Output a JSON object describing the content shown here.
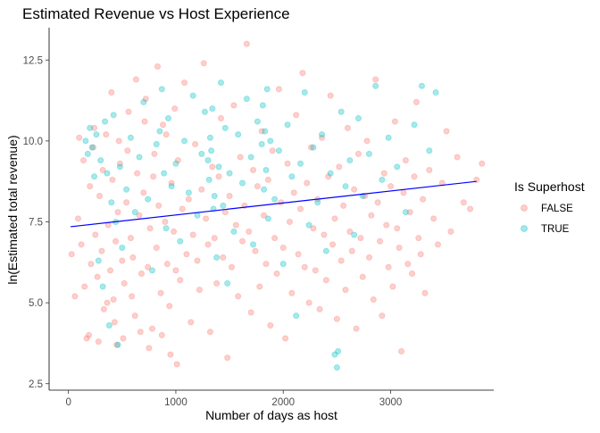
{
  "chart_data": {
    "type": "scatter",
    "title": "Estimated Revenue vs Host Experience",
    "xlabel": "Number of days as host",
    "ylabel": "ln(Estimated total revenue)",
    "xlim": [
      -180,
      3960
    ],
    "ylim": [
      2.3,
      13.5
    ],
    "x_ticks": [
      0,
      1000,
      2000,
      3000
    ],
    "x_tick_labels": [
      "0",
      "1000",
      "2000",
      "3000"
    ],
    "y_ticks": [
      2.5,
      5.0,
      7.5,
      10.0,
      12.5
    ],
    "y_tick_labels": [
      "2.5",
      "5.0",
      "7.5",
      "10.0",
      "12.5"
    ],
    "grid": false,
    "legend_position": "right",
    "legend": {
      "title": "Is Superhost",
      "entries": [
        {
          "label": "FALSE",
          "color": "#F8766D"
        },
        {
          "label": "TRUE",
          "color": "#00BFC4"
        }
      ]
    },
    "series": [
      {
        "name": "FALSE",
        "color": "#F8766D",
        "opacity": 0.35,
        "points": [
          [
            30,
            6.5
          ],
          [
            60,
            5.2
          ],
          [
            90,
            7.6
          ],
          [
            120,
            6.8
          ],
          [
            150,
            5.5
          ],
          [
            170,
            3.9
          ],
          [
            190,
            4.0
          ],
          [
            200,
            8.6
          ],
          [
            210,
            6.2
          ],
          [
            230,
            9.8
          ],
          [
            250,
            7.1
          ],
          [
            270,
            5.8
          ],
          [
            290,
            8.3
          ],
          [
            310,
            6.6
          ],
          [
            330,
            4.8
          ],
          [
            350,
            10.2
          ],
          [
            370,
            7.4
          ],
          [
            390,
            6.0
          ],
          [
            410,
            8.8
          ],
          [
            420,
            5.1
          ],
          [
            440,
            6.9
          ],
          [
            450,
            3.7
          ],
          [
            460,
            7.8
          ],
          [
            480,
            9.3
          ],
          [
            500,
            6.3
          ],
          [
            520,
            5.6
          ],
          [
            540,
            8.1
          ],
          [
            560,
            10.9
          ],
          [
            580,
            7.0
          ],
          [
            600,
            6.4
          ],
          [
            620,
            4.6
          ],
          [
            640,
            9.0
          ],
          [
            660,
            7.7
          ],
          [
            680,
            5.9
          ],
          [
            700,
            8.4
          ],
          [
            720,
            11.3
          ],
          [
            740,
            6.1
          ],
          [
            760,
            7.3
          ],
          [
            780,
            4.2
          ],
          [
            800,
            9.6
          ],
          [
            820,
            6.7
          ],
          [
            840,
            8.0
          ],
          [
            860,
            5.3
          ],
          [
            880,
            10.5
          ],
          [
            900,
            7.5
          ],
          [
            920,
            6.2
          ],
          [
            940,
            4.9
          ],
          [
            960,
            8.7
          ],
          [
            980,
            7.2
          ],
          [
            1000,
            6.0
          ],
          [
            1010,
            3.1
          ],
          [
            1020,
            9.4
          ],
          [
            1040,
            5.7
          ],
          [
            1060,
            7.9
          ],
          [
            1080,
            11.8
          ],
          [
            1100,
            6.5
          ],
          [
            1120,
            8.2
          ],
          [
            1140,
            4.4
          ],
          [
            1160,
            7.1
          ],
          [
            1180,
            9.9
          ],
          [
            1200,
            6.3
          ],
          [
            1220,
            5.4
          ],
          [
            1240,
            8.5
          ],
          [
            1260,
            12.4
          ],
          [
            1280,
            7.6
          ],
          [
            1300,
            6.8
          ],
          [
            1320,
            4.1
          ],
          [
            1340,
            9.2
          ],
          [
            1360,
            7.0
          ],
          [
            1380,
            5.6
          ],
          [
            1400,
            8.9
          ],
          [
            1420,
            10.7
          ],
          [
            1440,
            6.4
          ],
          [
            1460,
            7.8
          ],
          [
            1480,
            3.3
          ],
          [
            1500,
            8.3
          ],
          [
            1520,
            6.1
          ],
          [
            1540,
            11.1
          ],
          [
            1560,
            7.4
          ],
          [
            1580,
            5.2
          ],
          [
            1600,
            9.5
          ],
          [
            1620,
            6.9
          ],
          [
            1640,
            8.0
          ],
          [
            1660,
            13.0
          ],
          [
            1680,
            7.2
          ],
          [
            1700,
            4.7
          ],
          [
            1720,
            9.1
          ],
          [
            1740,
            6.6
          ],
          [
            1760,
            8.6
          ],
          [
            1780,
            5.5
          ],
          [
            1800,
            10.3
          ],
          [
            1820,
            7.7
          ],
          [
            1840,
            6.2
          ],
          [
            1860,
            8.8
          ],
          [
            1880,
            4.3
          ],
          [
            1900,
            9.7
          ],
          [
            1920,
            7.0
          ],
          [
            1940,
            5.9
          ],
          [
            1960,
            11.6
          ],
          [
            1980,
            8.1
          ],
          [
            2000,
            6.7
          ],
          [
            2020,
            3.9
          ],
          [
            2040,
            9.3
          ],
          [
            2060,
            7.5
          ],
          [
            2080,
            5.3
          ],
          [
            2100,
            8.4
          ],
          [
            2120,
            10.8
          ],
          [
            2140,
            6.5
          ],
          [
            2160,
            7.9
          ],
          [
            2180,
            12.1
          ],
          [
            2200,
            6.1
          ],
          [
            2220,
            8.7
          ],
          [
            2240,
            5.0
          ],
          [
            2260,
            9.8
          ],
          [
            2280,
            7.3
          ],
          [
            2300,
            6.0
          ],
          [
            2320,
            8.2
          ],
          [
            2340,
            4.8
          ],
          [
            2360,
            10.1
          ],
          [
            2380,
            7.1
          ],
          [
            2400,
            5.7
          ],
          [
            2420,
            8.9
          ],
          [
            2440,
            11.4
          ],
          [
            2460,
            6.8
          ],
          [
            2480,
            7.6
          ],
          [
            2500,
            4.5
          ],
          [
            2520,
            9.2
          ],
          [
            2540,
            6.3
          ],
          [
            2560,
            8.0
          ],
          [
            2580,
            5.4
          ],
          [
            2600,
            10.4
          ],
          [
            2620,
            7.2
          ],
          [
            2640,
            6.6
          ],
          [
            2660,
            8.5
          ],
          [
            2680,
            4.2
          ],
          [
            2700,
            9.6
          ],
          [
            2720,
            7.0
          ],
          [
            2740,
            5.8
          ],
          [
            2760,
            8.3
          ],
          [
            2780,
            10.0
          ],
          [
            2800,
            6.4
          ],
          [
            2820,
            7.7
          ],
          [
            2840,
            5.1
          ],
          [
            2860,
            11.9
          ],
          [
            2880,
            8.1
          ],
          [
            2900,
            6.9
          ],
          [
            2920,
            4.6
          ],
          [
            2940,
            9.0
          ],
          [
            2960,
            7.4
          ],
          [
            2980,
            6.1
          ],
          [
            3000,
            8.6
          ],
          [
            3020,
            5.5
          ],
          [
            3040,
            10.6
          ],
          [
            3060,
            7.3
          ],
          [
            3080,
            6.7
          ],
          [
            3100,
            3.5
          ],
          [
            3120,
            8.4
          ],
          [
            3140,
            9.4
          ],
          [
            3160,
            6.2
          ],
          [
            3180,
            7.8
          ],
          [
            3200,
            5.9
          ],
          [
            3220,
            8.9
          ],
          [
            3240,
            11.2
          ],
          [
            3260,
            7.0
          ],
          [
            3280,
            6.5
          ],
          [
            3300,
            8.2
          ],
          [
            3320,
            5.3
          ],
          [
            3360,
            9.1
          ],
          [
            3400,
            7.6
          ],
          [
            3440,
            6.8
          ],
          [
            3480,
            8.7
          ],
          [
            3520,
            10.3
          ],
          [
            3560,
            7.2
          ],
          [
            3620,
            9.5
          ],
          [
            3680,
            8.1
          ],
          [
            3740,
            7.9
          ],
          [
            3800,
            8.8
          ],
          [
            3850,
            9.3
          ],
          [
            100,
            10.1
          ],
          [
            140,
            9.4
          ],
          [
            240,
            10.4
          ],
          [
            280,
            3.8
          ],
          [
            320,
            9.1
          ],
          [
            360,
            5.0
          ],
          [
            400,
            11.5
          ],
          [
            430,
            4.4
          ],
          [
            470,
            10.0
          ],
          [
            510,
            3.9
          ],
          [
            550,
            9.7
          ],
          [
            590,
            5.2
          ],
          [
            630,
            11.9
          ],
          [
            670,
            4.1
          ],
          [
            710,
            10.6
          ],
          [
            750,
            3.6
          ],
          [
            790,
            8.9
          ],
          [
            830,
            12.3
          ],
          [
            870,
            4.0
          ],
          [
            910,
            10.2
          ],
          [
            950,
            3.4
          ],
          [
            990,
            11.0
          ]
        ]
      },
      {
        "name": "TRUE",
        "color": "#00BFC4",
        "opacity": 0.35,
        "points": [
          [
            160,
            10.0
          ],
          [
            180,
            9.6
          ],
          [
            200,
            10.4
          ],
          [
            220,
            9.8
          ],
          [
            240,
            8.9
          ],
          [
            260,
            10.2
          ],
          [
            280,
            6.3
          ],
          [
            300,
            9.4
          ],
          [
            320,
            5.5
          ],
          [
            340,
            10.6
          ],
          [
            360,
            9.0
          ],
          [
            380,
            4.3
          ],
          [
            400,
            8.1
          ],
          [
            420,
            10.8
          ],
          [
            440,
            7.5
          ],
          [
            460,
            3.7
          ],
          [
            480,
            9.2
          ],
          [
            500,
            6.7
          ],
          [
            540,
            8.5
          ],
          [
            580,
            10.1
          ],
          [
            620,
            7.8
          ],
          [
            660,
            9.5
          ],
          [
            700,
            11.2
          ],
          [
            740,
            8.2
          ],
          [
            780,
            6.0
          ],
          [
            820,
            9.9
          ],
          [
            850,
            10.3
          ],
          [
            870,
            11.6
          ],
          [
            890,
            9.0
          ],
          [
            910,
            7.3
          ],
          [
            930,
            10.7
          ],
          [
            960,
            8.6
          ],
          [
            1000,
            9.3
          ],
          [
            1040,
            6.9
          ],
          [
            1080,
            10.0
          ],
          [
            1120,
            8.4
          ],
          [
            1160,
            11.4
          ],
          [
            1200,
            7.7
          ],
          [
            1240,
            9.6
          ],
          [
            1270,
            10.9
          ],
          [
            1300,
            9.4
          ],
          [
            1310,
            8.8
          ],
          [
            1320,
            10.1
          ],
          [
            1330,
            9.7
          ],
          [
            1340,
            11.0
          ],
          [
            1350,
            7.9
          ],
          [
            1360,
            8.3
          ],
          [
            1380,
            6.4
          ],
          [
            1400,
            9.2
          ],
          [
            1420,
            11.8
          ],
          [
            1440,
            8.0
          ],
          [
            1460,
            10.4
          ],
          [
            1480,
            5.6
          ],
          [
            1500,
            9.0
          ],
          [
            1540,
            7.2
          ],
          [
            1580,
            10.2
          ],
          [
            1620,
            8.7
          ],
          [
            1660,
            11.3
          ],
          [
            1700,
            9.5
          ],
          [
            1720,
            6.8
          ],
          [
            1760,
            10.6
          ],
          [
            1800,
            9.9
          ],
          [
            1810,
            11.1
          ],
          [
            1820,
            8.5
          ],
          [
            1830,
            10.3
          ],
          [
            1840,
            9.1
          ],
          [
            1850,
            11.6
          ],
          [
            1860,
            7.6
          ],
          [
            1880,
            10.0
          ],
          [
            1920,
            8.2
          ],
          [
            1960,
            9.7
          ],
          [
            2000,
            6.2
          ],
          [
            2040,
            10.5
          ],
          [
            2080,
            8.9
          ],
          [
            2120,
            4.6
          ],
          [
            2160,
            9.3
          ],
          [
            2200,
            11.5
          ],
          [
            2240,
            7.4
          ],
          [
            2280,
            9.8
          ],
          [
            2320,
            8.1
          ],
          [
            2360,
            10.2
          ],
          [
            2400,
            6.6
          ],
          [
            2440,
            9.0
          ],
          [
            2480,
            3.4
          ],
          [
            2500,
            3.0
          ],
          [
            2510,
            3.5
          ],
          [
            2540,
            10.9
          ],
          [
            2580,
            8.6
          ],
          [
            2620,
            9.4
          ],
          [
            2660,
            7.1
          ],
          [
            2700,
            10.7
          ],
          [
            2740,
            8.3
          ],
          [
            2800,
            9.6
          ],
          [
            2860,
            11.7
          ],
          [
            2920,
            8.8
          ],
          [
            2980,
            10.1
          ],
          [
            3060,
            9.2
          ],
          [
            3140,
            7.8
          ],
          [
            3220,
            10.5
          ],
          [
            3290,
            11.7
          ],
          [
            3360,
            9.7
          ],
          [
            3420,
            11.5
          ]
        ]
      }
    ],
    "trend_line": {
      "color": "#0000FF",
      "x": [
        20,
        3800
      ],
      "y": [
        7.35,
        8.75
      ]
    }
  }
}
